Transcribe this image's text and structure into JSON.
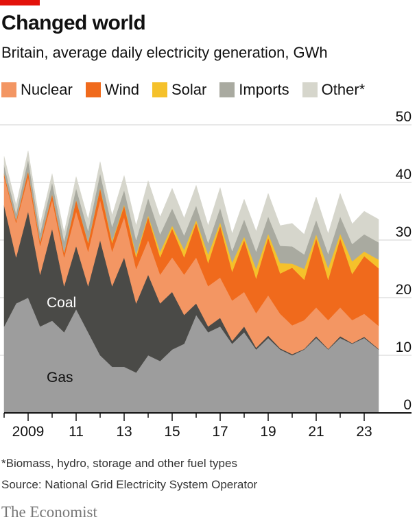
{
  "title": "Changed world",
  "subtitle": "Britain, average daily electricity generation, GWh",
  "footnote": "*Biomass, hydro, storage and other fuel types",
  "source": "Source: National Grid Electricity System Operator",
  "brand": "The Economist",
  "colors": {
    "gas": "#9d9d9d",
    "coal": "#4a4a47",
    "nuclear": "#f39663",
    "wind": "#f06a1c",
    "solar": "#f5c12b",
    "imports": "#a9aaa0",
    "other": "#d6d6cc",
    "accent": "#e3120b"
  },
  "chart_data": {
    "type": "area",
    "stacked": true,
    "xlim": [
      2008.0,
      2023.6
    ],
    "ylim": [
      0,
      50
    ],
    "y_ticks": [
      0,
      10,
      20,
      30,
      40,
      50
    ],
    "y_axis_side": "right",
    "grid": true,
    "x_tick_labels": [
      {
        "x": 2009,
        "label": "2009"
      },
      {
        "x": 2011,
        "label": "11"
      },
      {
        "x": 2013,
        "label": "13"
      },
      {
        "x": 2015,
        "label": "15"
      },
      {
        "x": 2017,
        "label": "17"
      },
      {
        "x": 2019,
        "label": "19"
      },
      {
        "x": 2021,
        "label": "21"
      },
      {
        "x": 2023,
        "label": "23"
      }
    ],
    "legend": [
      "Nuclear",
      "Wind",
      "Solar",
      "Imports",
      "Other*"
    ],
    "annotations": [
      "Coal",
      "Gas"
    ],
    "x": [
      2008.0,
      2008.5,
      2009.0,
      2009.5,
      2010.0,
      2010.5,
      2011.0,
      2011.5,
      2012.0,
      2012.5,
      2013.0,
      2013.5,
      2014.0,
      2014.5,
      2015.0,
      2015.5,
      2016.0,
      2016.5,
      2017.0,
      2017.5,
      2018.0,
      2018.5,
      2019.0,
      2019.5,
      2020.0,
      2020.5,
      2021.0,
      2021.5,
      2022.0,
      2022.5,
      2023.0,
      2023.6
    ],
    "series": [
      {
        "name": "Gas",
        "values": [
          15,
          19,
          20,
          15,
          16,
          14,
          18,
          14,
          10,
          8,
          8,
          7,
          10,
          9,
          11,
          12,
          17,
          14,
          15,
          12,
          14,
          11,
          13,
          11,
          10,
          11,
          13,
          11,
          13,
          12,
          13,
          11
        ]
      },
      {
        "name": "Coal",
        "values": [
          21,
          8,
          15,
          9,
          16,
          8,
          11,
          8,
          20,
          14,
          19,
          12,
          14,
          10,
          10,
          5,
          2,
          1,
          1.5,
          0.5,
          1,
          0.3,
          0.4,
          0.2,
          0.2,
          0.1,
          0.3,
          0.1,
          0.3,
          0.1,
          0.2,
          0.1
        ]
      },
      {
        "name": "Nuclear",
        "values": [
          5,
          6,
          6,
          5,
          5,
          5,
          6,
          6,
          7,
          6,
          7,
          6,
          6,
          5,
          6,
          7,
          8,
          7,
          7,
          7,
          6,
          6,
          7,
          6,
          5,
          5,
          5,
          5,
          5,
          4,
          4,
          4
        ]
      },
      {
        "name": "Wind",
        "values": [
          0.5,
          0.4,
          1,
          0.7,
          1,
          0.8,
          2,
          1.5,
          2,
          1.5,
          2,
          2,
          4,
          3,
          5,
          3,
          6,
          4,
          9,
          5,
          9,
          6,
          10,
          7,
          10,
          7,
          12,
          7,
          12,
          8,
          10,
          10
        ]
      },
      {
        "name": "Solar",
        "values": [
          0,
          0,
          0,
          0,
          0,
          0,
          0,
          0.1,
          0.1,
          0.3,
          0.2,
          0.5,
          0.3,
          1,
          0.5,
          1.3,
          0.5,
          1.5,
          0.6,
          1.6,
          0.6,
          1.7,
          0.7,
          1.8,
          0.7,
          1.9,
          0.7,
          2,
          0.8,
          2.2,
          0.8,
          1.5
        ]
      },
      {
        "name": "Imports",
        "values": [
          1.5,
          1.2,
          2,
          1.5,
          2,
          2,
          2,
          2,
          2.5,
          2.5,
          2.5,
          2.5,
          3,
          3,
          3,
          2.5,
          2.5,
          2,
          2.5,
          2,
          3,
          3,
          3,
          3,
          3,
          2.5,
          2.5,
          2.5,
          3,
          3,
          3,
          3
        ]
      },
      {
        "name": "Other*",
        "values": [
          1.5,
          1.5,
          1.5,
          1.5,
          1.5,
          1.5,
          2,
          2,
          2,
          2,
          2.5,
          2.5,
          3,
          3,
          3.5,
          3,
          3.5,
          3,
          3.5,
          3,
          3.5,
          3.5,
          4,
          3.5,
          4,
          3.5,
          4,
          3.5,
          4,
          3.5,
          4,
          4
        ]
      }
    ]
  }
}
